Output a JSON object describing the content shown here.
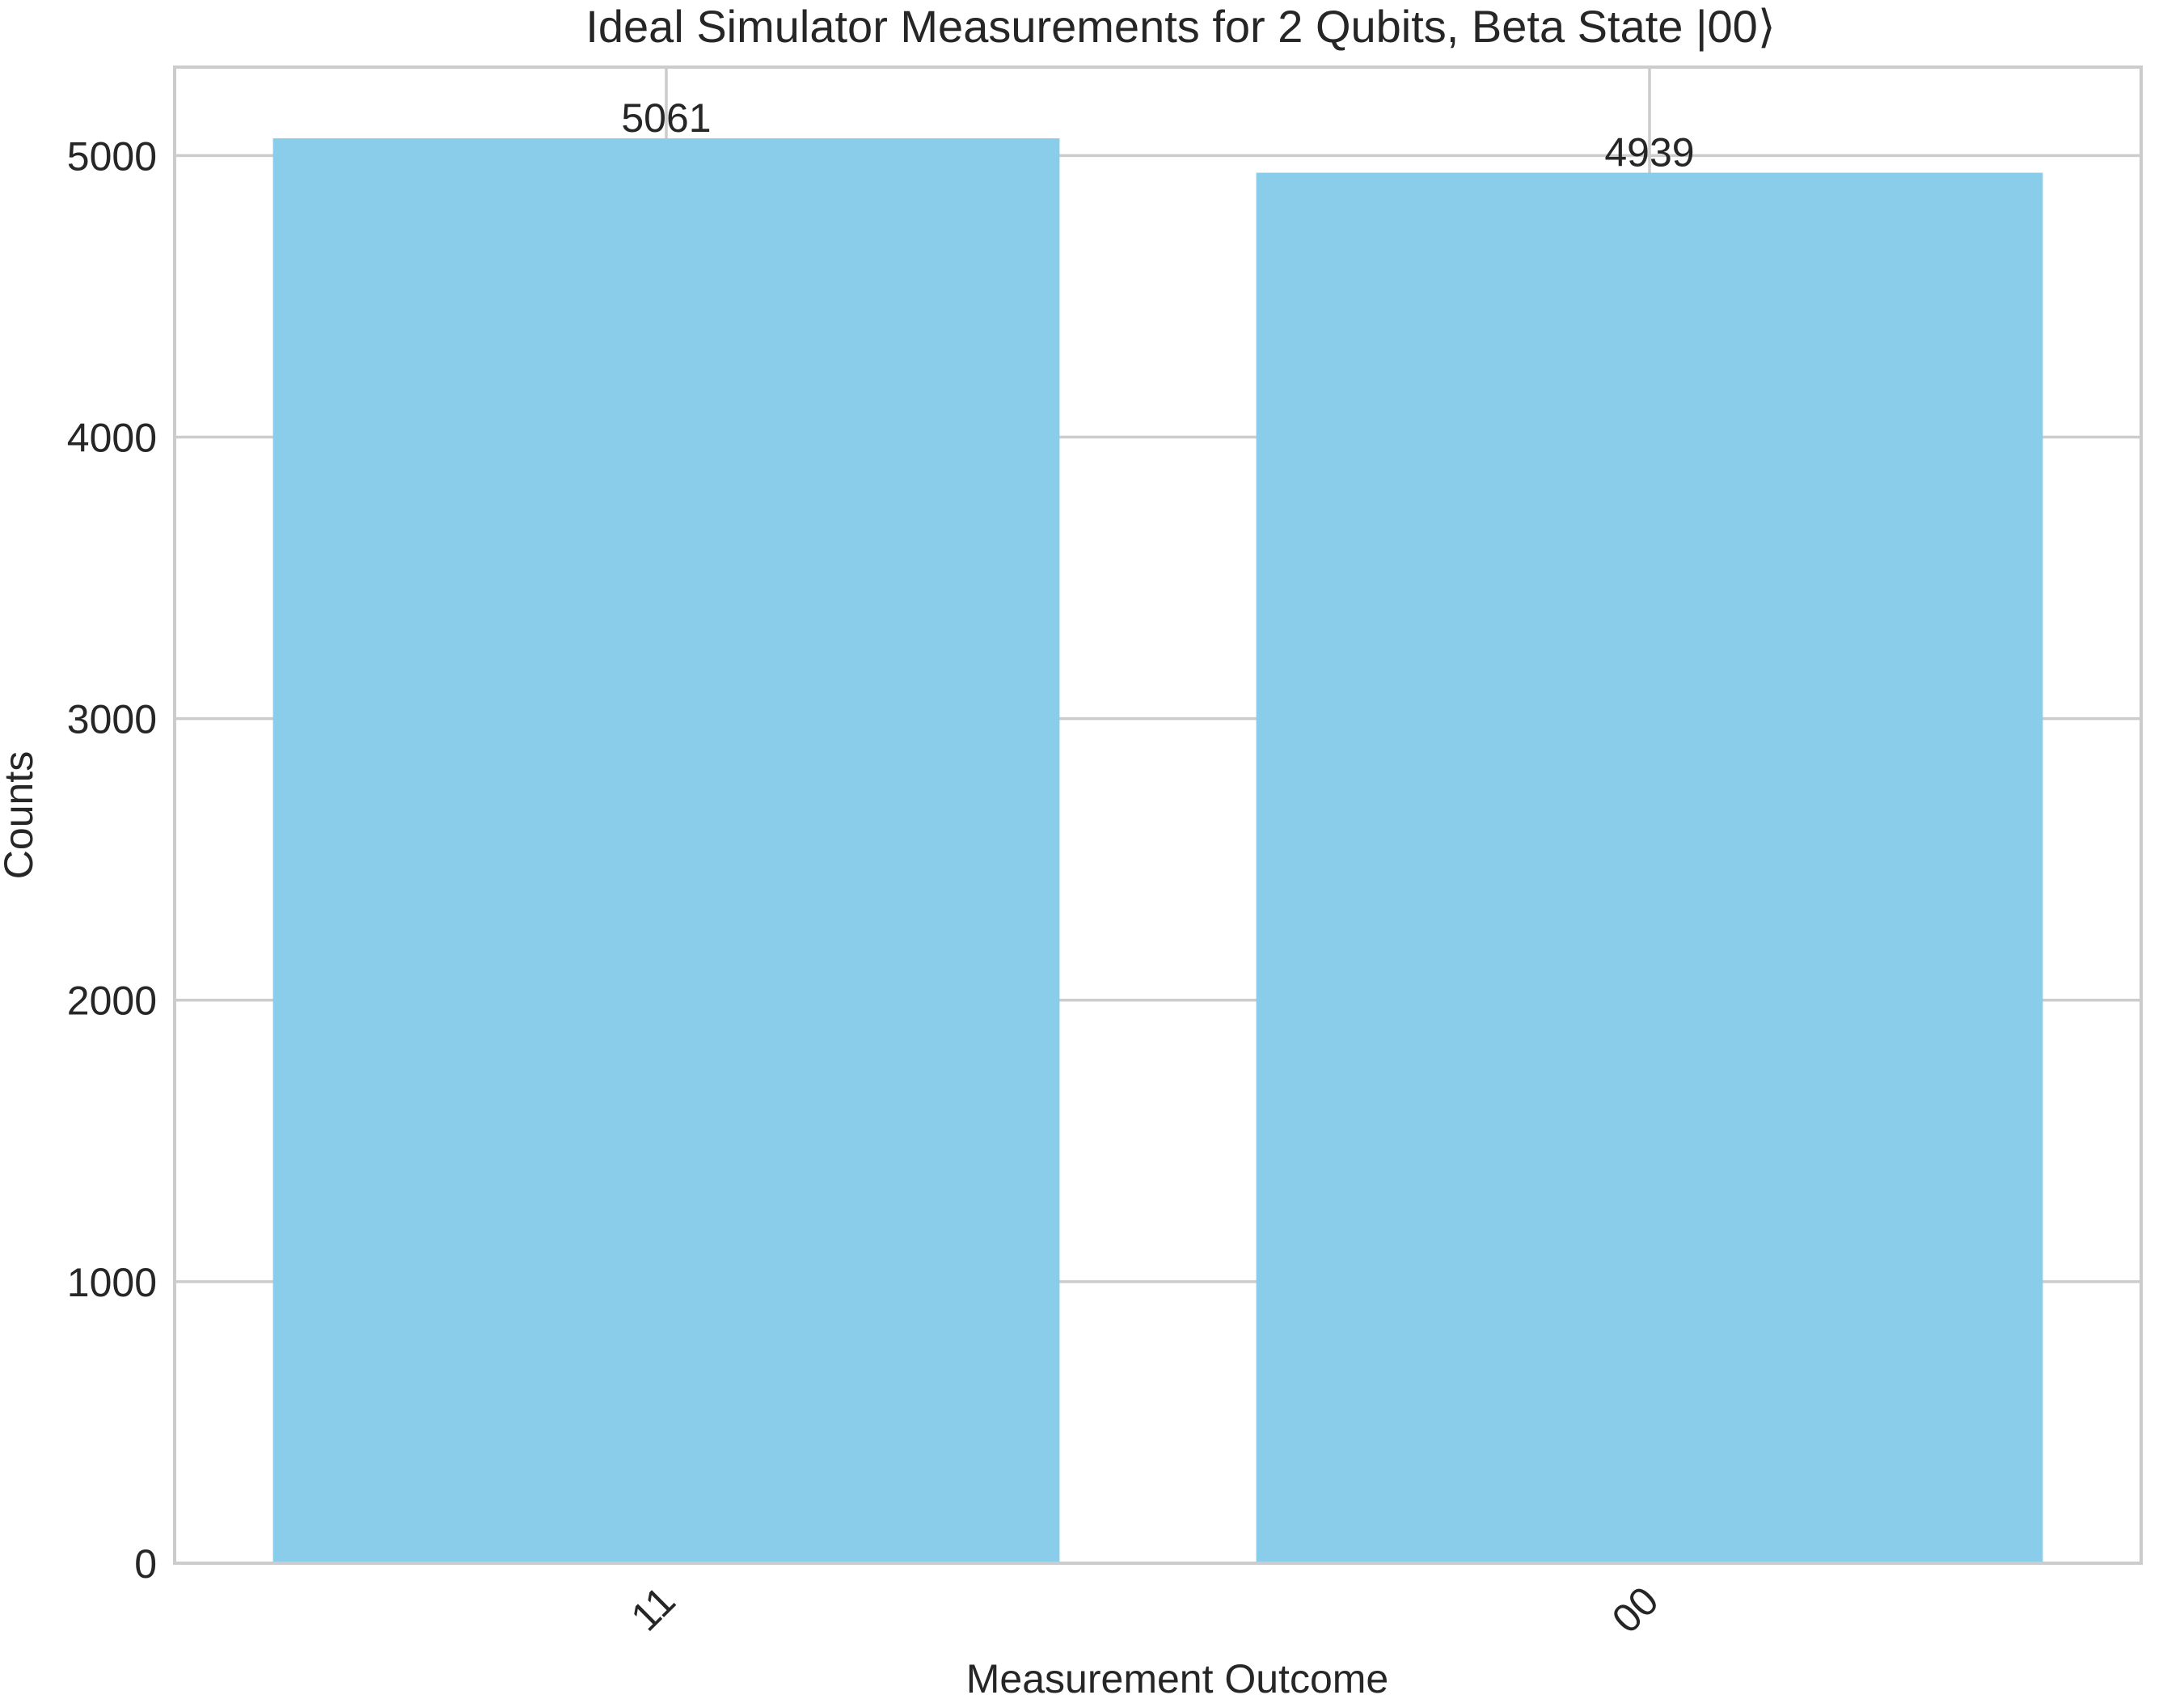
{
  "chart_data": {
    "type": "bar",
    "title": "Ideal Simulator Measurements for 2 Qubits, Beta State |00⟩",
    "xlabel": "Measurement Outcome",
    "ylabel": "Counts",
    "categories": [
      "11",
      "00"
    ],
    "values": [
      5061,
      4939
    ],
    "data_labels": [
      "5061",
      "4939"
    ],
    "ylim": [
      0,
      5314
    ],
    "yticks": [
      0,
      1000,
      2000,
      3000,
      4000,
      5000
    ],
    "ytick_labels": [
      "0",
      "1000",
      "2000",
      "3000",
      "4000",
      "5000"
    ],
    "xtick_rotation": 45,
    "bar_color": "#89CDEA",
    "grid": true,
    "legend": "none"
  }
}
